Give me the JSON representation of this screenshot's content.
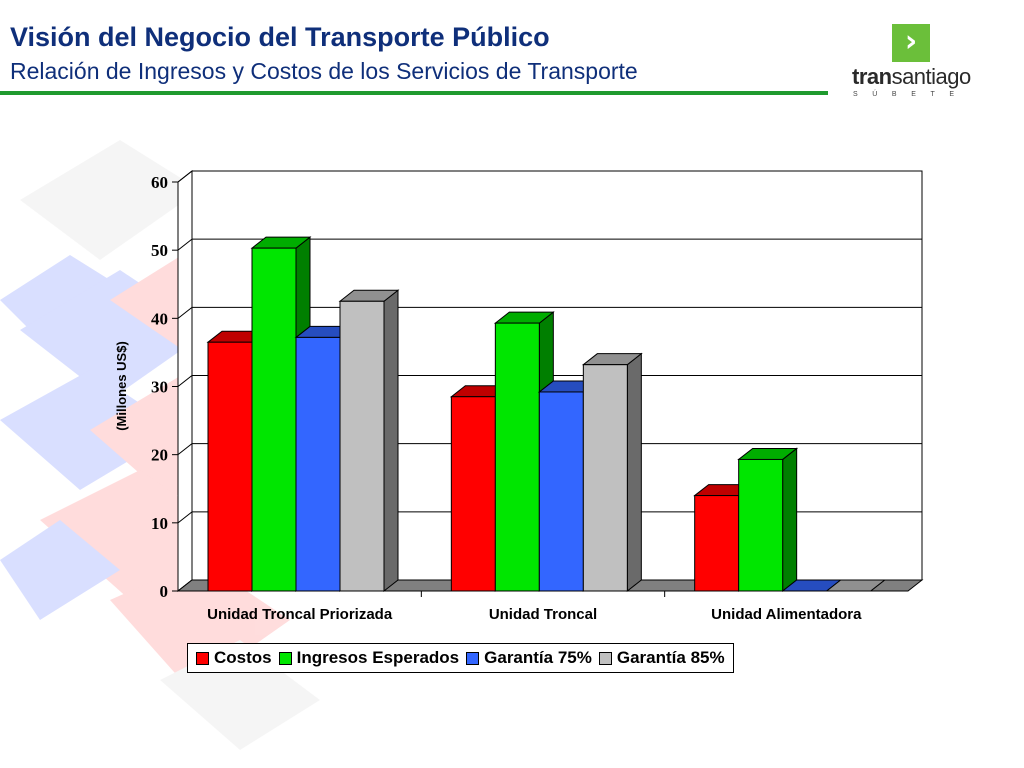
{
  "header": {
    "title": "Visión del Negocio del Transporte Público",
    "subtitle": "Relación de Ingresos y Costos de los Servicios de Transporte"
  },
  "logo": {
    "word_bold": "tran",
    "word_rest": "santiago",
    "tagline": "SÚBETE",
    "chevron_icon": "chevron-right-icon"
  },
  "colors": {
    "title": "#0f2f7a",
    "rule": "#1f9a2e",
    "logo_green": "#6bbf3a"
  },
  "chart_data": {
    "type": "bar",
    "three_d": true,
    "categories": [
      "Unidad Troncal Priorizada",
      "Unidad Troncal",
      "Unidad Alimentadora"
    ],
    "series": [
      {
        "name": "Costos",
        "values": [
          36.5,
          28.5,
          14
        ],
        "color": "#ff0000"
      },
      {
        "name": "Ingresos Esperados",
        "values": [
          50.3,
          39.3,
          19.3
        ],
        "color": "#00e600"
      },
      {
        "name": "Garantía 75%",
        "values": [
          37.2,
          29.2,
          0
        ],
        "color": "#3366ff"
      },
      {
        "name": "Garantía 85%",
        "values": [
          42.5,
          33.2,
          0
        ],
        "color": "#c0c0c0"
      }
    ],
    "ylabel": "(Millones US$)",
    "xlabel": "",
    "ylim": [
      0,
      60
    ],
    "yticks": [
      0,
      10,
      20,
      30,
      40,
      50,
      60
    ],
    "grid": true,
    "legend_position": "bottom"
  }
}
